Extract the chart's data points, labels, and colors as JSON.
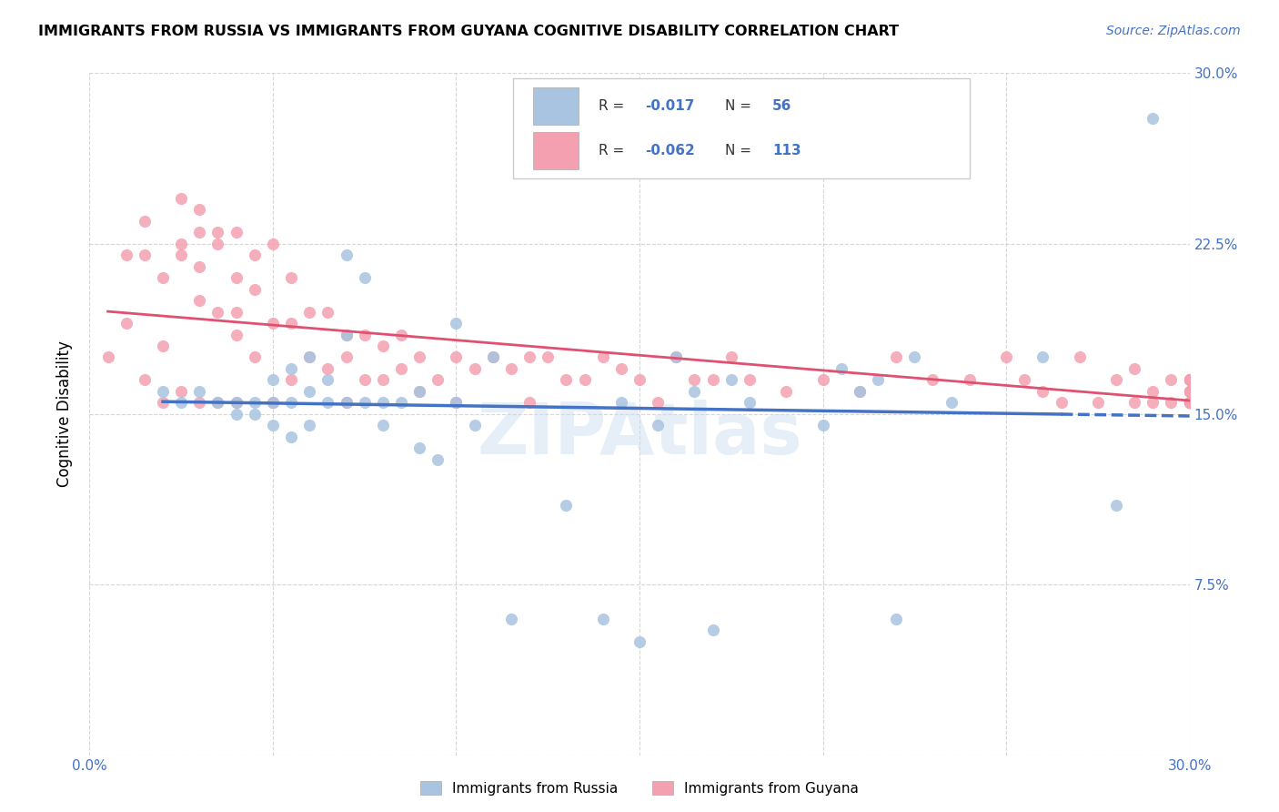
{
  "title": "IMMIGRANTS FROM RUSSIA VS IMMIGRANTS FROM GUYANA COGNITIVE DISABILITY CORRELATION CHART",
  "source": "Source: ZipAtlas.com",
  "ylabel": "Cognitive Disability",
  "xlim": [
    0.0,
    0.3
  ],
  "ylim": [
    0.0,
    0.3
  ],
  "legend_russia": "Immigrants from Russia",
  "legend_guyana": "Immigrants from Guyana",
  "R_russia": "-0.017",
  "N_russia": "56",
  "R_guyana": "-0.062",
  "N_guyana": "113",
  "color_russia": "#a8c4e0",
  "color_guyana": "#f4a0b0",
  "line_russia": "#4472c4",
  "line_guyana": "#e05070",
  "russia_x": [
    0.02,
    0.025,
    0.03,
    0.035,
    0.04,
    0.04,
    0.045,
    0.045,
    0.05,
    0.05,
    0.05,
    0.055,
    0.055,
    0.055,
    0.06,
    0.06,
    0.06,
    0.065,
    0.065,
    0.07,
    0.07,
    0.07,
    0.075,
    0.075,
    0.08,
    0.08,
    0.085,
    0.09,
    0.09,
    0.095,
    0.1,
    0.1,
    0.105,
    0.11,
    0.115,
    0.12,
    0.13,
    0.14,
    0.145,
    0.15,
    0.155,
    0.16,
    0.165,
    0.17,
    0.175,
    0.18,
    0.2,
    0.205,
    0.21,
    0.215,
    0.22,
    0.225,
    0.235,
    0.26,
    0.28,
    0.29
  ],
  "russia_y": [
    0.16,
    0.155,
    0.16,
    0.155,
    0.155,
    0.15,
    0.155,
    0.15,
    0.165,
    0.155,
    0.145,
    0.17,
    0.155,
    0.14,
    0.175,
    0.16,
    0.145,
    0.165,
    0.155,
    0.22,
    0.185,
    0.155,
    0.21,
    0.155,
    0.155,
    0.145,
    0.155,
    0.16,
    0.135,
    0.13,
    0.19,
    0.155,
    0.145,
    0.175,
    0.06,
    0.265,
    0.11,
    0.06,
    0.155,
    0.05,
    0.145,
    0.175,
    0.16,
    0.055,
    0.165,
    0.155,
    0.145,
    0.17,
    0.16,
    0.165,
    0.06,
    0.175,
    0.155,
    0.175,
    0.11,
    0.28
  ],
  "guyana_x": [
    0.005,
    0.01,
    0.01,
    0.015,
    0.015,
    0.015,
    0.02,
    0.02,
    0.02,
    0.025,
    0.025,
    0.025,
    0.025,
    0.03,
    0.03,
    0.03,
    0.03,
    0.03,
    0.035,
    0.035,
    0.035,
    0.035,
    0.04,
    0.04,
    0.04,
    0.04,
    0.04,
    0.045,
    0.045,
    0.045,
    0.05,
    0.05,
    0.05,
    0.055,
    0.055,
    0.055,
    0.06,
    0.06,
    0.065,
    0.065,
    0.07,
    0.07,
    0.07,
    0.075,
    0.075,
    0.08,
    0.08,
    0.085,
    0.085,
    0.09,
    0.09,
    0.095,
    0.1,
    0.1,
    0.105,
    0.11,
    0.115,
    0.12,
    0.12,
    0.125,
    0.13,
    0.135,
    0.14,
    0.145,
    0.15,
    0.155,
    0.16,
    0.165,
    0.17,
    0.175,
    0.18,
    0.19,
    0.2,
    0.21,
    0.22,
    0.23,
    0.24,
    0.25,
    0.255,
    0.26,
    0.265,
    0.27,
    0.275,
    0.28,
    0.285,
    0.285,
    0.29,
    0.29,
    0.295,
    0.295,
    0.3,
    0.3,
    0.3,
    0.3,
    0.3,
    0.3,
    0.3,
    0.3,
    0.3,
    0.3,
    0.3,
    0.3,
    0.3,
    0.3,
    0.3,
    0.3,
    0.3,
    0.3,
    0.3,
    0.3,
    0.3,
    0.3,
    0.3,
    0.3
  ],
  "guyana_y": [
    0.175,
    0.22,
    0.19,
    0.235,
    0.22,
    0.165,
    0.21,
    0.18,
    0.155,
    0.245,
    0.225,
    0.22,
    0.16,
    0.24,
    0.23,
    0.215,
    0.2,
    0.155,
    0.23,
    0.225,
    0.195,
    0.155,
    0.23,
    0.21,
    0.195,
    0.185,
    0.155,
    0.22,
    0.205,
    0.175,
    0.225,
    0.19,
    0.155,
    0.21,
    0.19,
    0.165,
    0.195,
    0.175,
    0.195,
    0.17,
    0.185,
    0.175,
    0.155,
    0.185,
    0.165,
    0.18,
    0.165,
    0.185,
    0.17,
    0.175,
    0.16,
    0.165,
    0.175,
    0.155,
    0.17,
    0.175,
    0.17,
    0.175,
    0.155,
    0.175,
    0.165,
    0.165,
    0.175,
    0.17,
    0.165,
    0.155,
    0.175,
    0.165,
    0.165,
    0.175,
    0.165,
    0.16,
    0.165,
    0.16,
    0.175,
    0.165,
    0.165,
    0.175,
    0.165,
    0.16,
    0.155,
    0.175,
    0.155,
    0.165,
    0.17,
    0.155,
    0.16,
    0.155,
    0.165,
    0.155,
    0.16,
    0.155,
    0.165,
    0.155,
    0.16,
    0.155,
    0.165,
    0.155,
    0.16,
    0.155,
    0.165,
    0.155,
    0.16,
    0.155,
    0.165,
    0.155,
    0.16,
    0.155,
    0.165,
    0.155,
    0.16,
    0.155,
    0.165
  ]
}
